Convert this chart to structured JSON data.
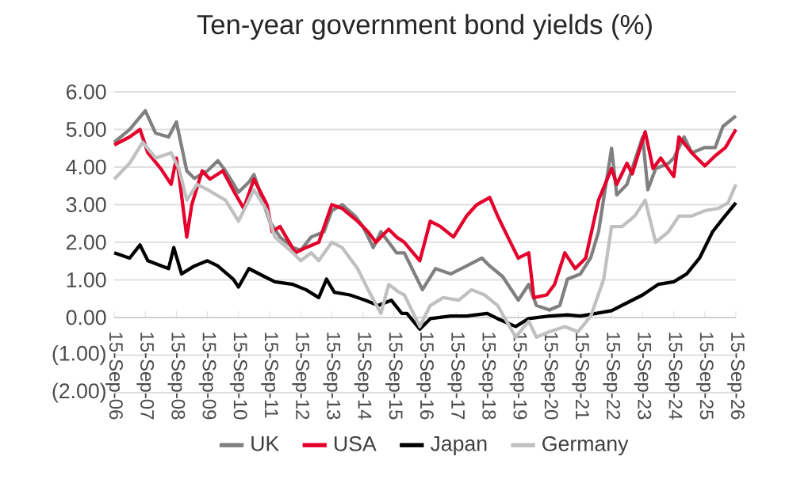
{
  "chart_data": {
    "type": "line",
    "title": "Ten-year government bond yields (%)",
    "xlim": [
      "2006-09-15",
      "2026-09-15"
    ],
    "xticks": [
      {
        "value": "2006-09-15",
        "label": "15-Sep-06"
      },
      {
        "value": "2007-09-15",
        "label": "15-Sep-07"
      },
      {
        "value": "2008-09-15",
        "label": "15-Sep-08"
      },
      {
        "value": "2009-09-15",
        "label": "15-Sep-09"
      },
      {
        "value": "2010-09-15",
        "label": "15-Sep-10"
      },
      {
        "value": "2011-09-15",
        "label": "15-Sep-11"
      },
      {
        "value": "2012-09-15",
        "label": "15-Sep-12"
      },
      {
        "value": "2013-09-15",
        "label": "15-Sep-13"
      },
      {
        "value": "2014-09-15",
        "label": "15-Sep-14"
      },
      {
        "value": "2015-09-15",
        "label": "15-Sep-15"
      },
      {
        "value": "2016-09-15",
        "label": "15-Sep-16"
      },
      {
        "value": "2017-09-15",
        "label": "15-Sep-17"
      },
      {
        "value": "2018-09-15",
        "label": "15-Sep-18"
      },
      {
        "value": "2019-09-15",
        "label": "15-Sep-19"
      },
      {
        "value": "2020-09-15",
        "label": "15-Sep-20"
      },
      {
        "value": "2021-09-15",
        "label": "15-Sep-21"
      },
      {
        "value": "2022-09-15",
        "label": "15-Sep-22"
      },
      {
        "value": "2023-09-15",
        "label": "15-Sep-23"
      },
      {
        "value": "2024-09-15",
        "label": "15-Sep-24"
      },
      {
        "value": "2025-09-15",
        "label": "15-Sep-25"
      },
      {
        "value": "2026-09-15",
        "label": "15-Sep-26"
      }
    ],
    "ylim": [
      -2,
      6
    ],
    "yticks": [
      {
        "value": -2,
        "label": "(2.00)"
      },
      {
        "value": -1,
        "label": "(1.00)"
      },
      {
        "value": 0,
        "label": "0.00"
      },
      {
        "value": 1,
        "label": "1.00"
      },
      {
        "value": 2,
        "label": "2.00"
      },
      {
        "value": 3,
        "label": "3.00"
      },
      {
        "value": 4,
        "label": "4.00"
      },
      {
        "value": 5,
        "label": "5.00"
      },
      {
        "value": 6,
        "label": "6.00"
      }
    ],
    "grid": "y",
    "legend": "bottom",
    "marker": "none",
    "line_style": "solid",
    "series": [
      {
        "name": "UK",
        "color": "#808080",
        "x": [
          "2006-09-15",
          "2007-03",
          "2007-09",
          "2008-01",
          "2008-06",
          "2008-09",
          "2009-01",
          "2009-04",
          "2009-09",
          "2010-01",
          "2010-04",
          "2010-09",
          "2011-01",
          "2011-03",
          "2011-09",
          "2012-01",
          "2012-06",
          "2012-09",
          "2013-01",
          "2013-06",
          "2013-09",
          "2014-01",
          "2014-06",
          "2014-09",
          "2015-01",
          "2015-04",
          "2015-10",
          "2016-01",
          "2016-04",
          "2016-08",
          "2017-01",
          "2017-07",
          "2018-01",
          "2018-07",
          "2018-10",
          "2019-03",
          "2019-09",
          "2020-01",
          "2020-04",
          "2020-09",
          "2021-01",
          "2021-04",
          "2021-09",
          "2022-01",
          "2022-04",
          "2022-09",
          "2022-11",
          "2023-03",
          "2023-07",
          "2023-09",
          "2023-11",
          "2024-02",
          "2024-07",
          "2024-09",
          "2025-01",
          "2025-04",
          "2025-09",
          "2026-01",
          "2026-04",
          "2026-09"
        ],
        "values": [
          4.66,
          5.0,
          5.5,
          4.9,
          4.8,
          5.2,
          3.9,
          3.7,
          3.9,
          4.17,
          3.9,
          3.33,
          3.6,
          3.8,
          2.56,
          2.14,
          1.86,
          1.79,
          2.14,
          2.28,
          2.84,
          3.0,
          2.7,
          2.42,
          1.86,
          2.28,
          1.72,
          1.72,
          1.3,
          0.74,
          1.3,
          1.16,
          1.37,
          1.58,
          1.37,
          1.09,
          0.46,
          0.88,
          0.32,
          0.2,
          0.32,
          1.02,
          1.16,
          1.6,
          2.28,
          4.5,
          3.26,
          3.54,
          4.38,
          4.8,
          3.4,
          3.96,
          4.1,
          4.24,
          4.8,
          4.38,
          4.52,
          4.52,
          5.08,
          5.36
        ]
      },
      {
        "name": "USA",
        "color": "#e4002b",
        "x": [
          "2006-09-15",
          "2007-03",
          "2007-07",
          "2007-10",
          "2008-03",
          "2008-07",
          "2008-09",
          "2008-10",
          "2009-01",
          "2009-03",
          "2009-07",
          "2009-10",
          "2010-03",
          "2010-08",
          "2010-11",
          "2011-03",
          "2011-08",
          "2011-10",
          "2012-01",
          "2012-07",
          "2012-11",
          "2013-04",
          "2013-09",
          "2014-01",
          "2014-07",
          "2014-11",
          "2015-02",
          "2015-07",
          "2015-10",
          "2016-01",
          "2016-07",
          "2016-11",
          "2017-03",
          "2017-08",
          "2018-01",
          "2018-05",
          "2018-10",
          "2019-01",
          "2019-05",
          "2019-09",
          "2020-01",
          "2020-03",
          "2020-08",
          "2020-11",
          "2021-03",
          "2021-07",
          "2021-11",
          "2022-04",
          "2022-09",
          "2022-11",
          "2023-03",
          "2023-05",
          "2023-10",
          "2024-01",
          "2024-04",
          "2024-09",
          "2024-11",
          "2025-04",
          "2025-09",
          "2026-01",
          "2026-05",
          "2026-09"
        ],
        "values": [
          4.59,
          4.8,
          5.0,
          4.38,
          3.96,
          3.54,
          4.24,
          3.8,
          2.14,
          3.0,
          3.9,
          3.68,
          3.9,
          3.26,
          2.9,
          3.68,
          3.0,
          2.28,
          2.42,
          1.72,
          1.86,
          2.0,
          3.0,
          2.9,
          2.56,
          2.28,
          2.0,
          2.35,
          2.14,
          2.0,
          1.51,
          2.56,
          2.42,
          2.14,
          2.7,
          3.0,
          3.19,
          2.7,
          2.14,
          1.58,
          1.72,
          0.53,
          0.6,
          0.88,
          1.72,
          1.3,
          1.58,
          3.12,
          3.96,
          3.54,
          4.1,
          3.82,
          4.94,
          3.96,
          4.24,
          3.75,
          4.8,
          4.38,
          4.03,
          4.3,
          4.52,
          5.0
        ]
      },
      {
        "name": "Japan",
        "color": "#000000",
        "x": [
          "2006-09-15",
          "2007-03",
          "2007-07",
          "2007-10",
          "2008-06",
          "2008-08",
          "2008-11",
          "2009-04",
          "2009-09",
          "2010-01",
          "2010-07",
          "2010-09",
          "2011-01",
          "2011-07",
          "2011-11",
          "2012-06",
          "2012-11",
          "2013-04",
          "2013-07",
          "2013-10",
          "2014-04",
          "2014-10",
          "2015-03",
          "2015-08",
          "2015-12",
          "2016-02",
          "2016-07",
          "2016-11",
          "2017-07",
          "2018-01",
          "2018-09",
          "2019-01",
          "2019-08",
          "2020-01",
          "2020-09",
          "2021-04",
          "2021-09",
          "2022-03",
          "2022-09",
          "2023-03",
          "2023-09",
          "2024-03",
          "2024-09",
          "2025-02",
          "2025-07",
          "2025-12",
          "2026-04",
          "2026-09"
        ],
        "values": [
          1.72,
          1.58,
          1.93,
          1.51,
          1.3,
          1.86,
          1.16,
          1.37,
          1.51,
          1.37,
          1.02,
          0.81,
          1.3,
          1.09,
          0.95,
          0.88,
          0.74,
          0.53,
          1.02,
          0.67,
          0.6,
          0.46,
          0.32,
          0.46,
          0.11,
          0.11,
          -0.31,
          -0.03,
          0.04,
          0.04,
          0.11,
          -0.03,
          -0.24,
          -0.03,
          0.04,
          0.07,
          0.04,
          0.11,
          0.18,
          0.39,
          0.6,
          0.88,
          0.95,
          1.16,
          1.58,
          2.28,
          2.63,
          3.05
        ]
      },
      {
        "name": "Germany",
        "color": "#c0c0c0",
        "x": [
          "2006-09-15",
          "2007-03",
          "2007-08",
          "2008-01",
          "2008-07",
          "2008-10",
          "2009-01",
          "2009-05",
          "2009-09",
          "2010-04",
          "2010-09",
          "2011-03",
          "2011-08",
          "2011-11",
          "2012-06",
          "2012-09",
          "2013-01",
          "2013-04",
          "2013-09",
          "2014-01",
          "2014-07",
          "2014-11",
          "2015-04",
          "2015-07",
          "2015-11",
          "2016-01",
          "2016-07",
          "2016-11",
          "2017-04",
          "2017-10",
          "2018-03",
          "2018-08",
          "2019-01",
          "2019-08",
          "2020-01",
          "2020-04",
          "2020-09",
          "2021-03",
          "2021-08",
          "2022-01",
          "2022-06",
          "2022-09",
          "2023-01",
          "2023-06",
          "2023-10",
          "2024-02",
          "2024-07",
          "2024-11",
          "2025-04",
          "2025-09",
          "2026-02",
          "2026-06",
          "2026-09"
        ],
        "values": [
          3.68,
          4.1,
          4.66,
          4.24,
          4.38,
          3.96,
          3.12,
          3.54,
          3.4,
          3.12,
          2.56,
          3.4,
          2.84,
          2.14,
          1.72,
          1.51,
          1.72,
          1.51,
          2.0,
          1.86,
          1.3,
          0.74,
          0.11,
          0.88,
          0.67,
          0.6,
          -0.24,
          0.32,
          0.53,
          0.46,
          0.74,
          0.6,
          0.32,
          -0.52,
          -0.1,
          -0.52,
          -0.38,
          -0.24,
          -0.38,
          0.04,
          1.02,
          2.42,
          2.42,
          2.7,
          3.12,
          2.0,
          2.28,
          2.7,
          2.7,
          2.84,
          2.9,
          3.05,
          3.54
        ]
      }
    ]
  }
}
